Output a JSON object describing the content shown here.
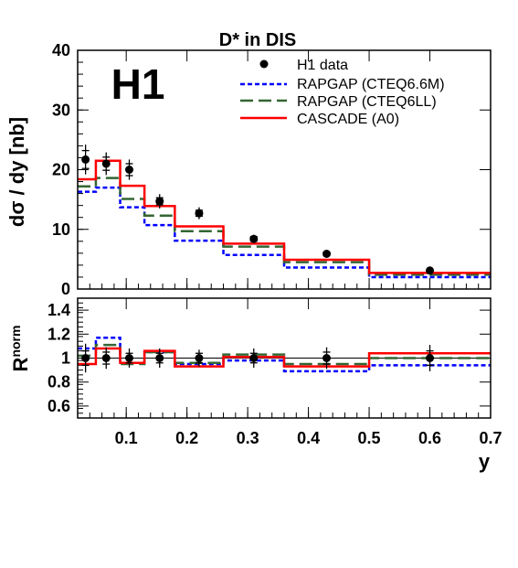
{
  "chart_data": [
    {
      "type": "line",
      "title": "D* in DIS",
      "logo": "H1",
      "xlabel": "y",
      "ylabel": "dσ / dy [nb]",
      "xlim": [
        0.02,
        0.7
      ],
      "ylim": [
        0,
        40
      ],
      "yticks": [
        0,
        10,
        20,
        30,
        40
      ],
      "bin_edges": [
        0.02,
        0.05,
        0.09,
        0.13,
        0.18,
        0.26,
        0.36,
        0.5,
        0.7
      ],
      "data": {
        "name": "H1 data",
        "x": [
          0.033,
          0.067,
          0.105,
          0.155,
          0.22,
          0.31,
          0.43,
          0.6
        ],
        "y": [
          21.7,
          21.0,
          20.0,
          14.7,
          12.7,
          8.4,
          5.9,
          3.1
        ],
        "err_stat": [
          1.5,
          1.1,
          1.0,
          0.6,
          0.5,
          0.4,
          0.3,
          0.2
        ],
        "err_tot": [
          2.5,
          1.9,
          1.7,
          1.2,
          1.0,
          0.7,
          0.5,
          0.3
        ]
      },
      "series": [
        {
          "name": "RAPGAP (CTEQ6.6M)",
          "color": "#0000ff",
          "style": "dotted",
          "values": [
            16.3,
            17.0,
            13.7,
            10.7,
            8.1,
            5.7,
            3.6,
            2.0
          ]
        },
        {
          "name": "RAPGAP (CTEQ6LL)",
          "color": "#336633",
          "style": "dashed",
          "values": [
            17.2,
            18.6,
            15.1,
            12.3,
            9.7,
            7.1,
            4.5,
            2.4
          ]
        },
        {
          "name": "CASCADE (A0)",
          "color": "#ff0000",
          "style": "solid",
          "values": [
            18.4,
            21.5,
            17.3,
            13.9,
            10.5,
            7.6,
            4.9,
            2.7
          ]
        }
      ],
      "legend": "top-right"
    },
    {
      "type": "line",
      "ylabel_base": "R",
      "ylabel_sup": "norm",
      "xlabel": "y",
      "xlim": [
        0.02,
        0.7
      ],
      "ylim": [
        0.5,
        1.5
      ],
      "yticks": [
        0.6,
        0.8,
        1,
        1.2,
        1.4
      ],
      "ytick_labels": [
        "0.6",
        "0.8",
        "1",
        "1.2",
        "1.4"
      ],
      "xticks": [
        0.1,
        0.2,
        0.3,
        0.4,
        0.5,
        0.6,
        0.7
      ],
      "xtick_labels": [
        "0.1",
        "0.2",
        "0.3",
        "0.4",
        "0.5",
        "0.6",
        "0.7"
      ],
      "reference_line": 1,
      "bin_edges": [
        0.02,
        0.05,
        0.09,
        0.13,
        0.18,
        0.26,
        0.36,
        0.5,
        0.7
      ],
      "data": {
        "x": [
          0.033,
          0.067,
          0.105,
          0.155,
          0.22,
          0.31,
          0.43,
          0.6
        ],
        "y": [
          1.0,
          1.0,
          1.0,
          1.0,
          1.0,
          1.0,
          1.0,
          1.0
        ],
        "err_stat": [
          0.06,
          0.05,
          0.04,
          0.04,
          0.04,
          0.04,
          0.05,
          0.06
        ],
        "err_tot": [
          0.12,
          0.09,
          0.08,
          0.08,
          0.07,
          0.08,
          0.09,
          0.11
        ]
      },
      "series": [
        {
          "name": "RAPGAP (CTEQ6.6M)",
          "color": "#0000ff",
          "style": "dotted",
          "values": [
            1.08,
            1.17,
            0.96,
            1.05,
            0.95,
            0.98,
            0.89,
            0.94
          ]
        },
        {
          "name": "RAPGAP (CTEQ6LL)",
          "color": "#336633",
          "style": "dashed",
          "values": [
            1.02,
            1.11,
            0.95,
            1.05,
            0.96,
            1.03,
            0.95,
            1.0
          ]
        },
        {
          "name": "CASCADE (A0)",
          "color": "#ff0000",
          "style": "solid",
          "values": [
            0.95,
            1.08,
            0.96,
            1.06,
            0.93,
            1.01,
            0.93,
            1.04
          ]
        }
      ]
    }
  ]
}
